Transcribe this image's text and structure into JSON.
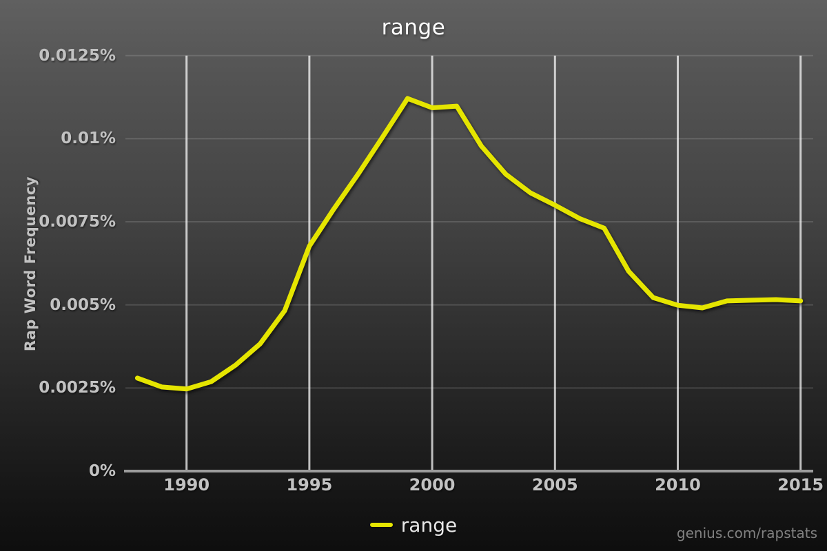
{
  "page": {
    "title": "range",
    "watermark": "genius.com/rapstats"
  },
  "colors": {
    "line": "#e5e500",
    "grid_vertical": "rgba(255,255,255,0.72)",
    "grid_horizontal": "rgba(255,255,255,0.14)",
    "axis": "#9c9c9c",
    "tick_label": "#c2c2c2",
    "title_text": "#ffffff",
    "background_top": "#606060",
    "background_bottom": "#0e0e0e"
  },
  "legend": {
    "label": "range"
  },
  "chart_data": {
    "type": "line",
    "title": "range",
    "xlabel": "",
    "ylabel": "Rap Word Frequency",
    "x": [
      1988,
      1989,
      1990,
      1991,
      1992,
      1993,
      1994,
      1995,
      1996,
      1997,
      1998,
      1999,
      2000,
      2001,
      2002,
      2003,
      2004,
      2005,
      2006,
      2007,
      2008,
      2009,
      2010,
      2011,
      2012,
      2013,
      2014,
      2015
    ],
    "series": [
      {
        "name": "range",
        "color": "#e5e500",
        "values": [
          0.0028,
          0.00253,
          0.00247,
          0.00269,
          0.00319,
          0.00383,
          0.00483,
          0.00677,
          0.00789,
          0.00895,
          0.01007,
          0.01121,
          0.01093,
          0.01098,
          0.00978,
          0.00893,
          0.00837,
          0.008,
          0.0076,
          0.00731,
          0.00601,
          0.00522,
          0.00499,
          0.00491,
          0.00512,
          0.00514,
          0.00516,
          0.00512
        ]
      }
    ],
    "xlim": [
      1988,
      2015
    ],
    "ylim": [
      0,
      0.0125
    ],
    "x_ticks": {
      "values": [
        1990,
        1995,
        2000,
        2005,
        2010,
        2015
      ],
      "labels": [
        "1990",
        "1995",
        "2000",
        "2005",
        "2010",
        "2015"
      ]
    },
    "y_ticks": {
      "values": [
        0,
        0.0025,
        0.005,
        0.0075,
        0.01,
        0.0125
      ],
      "labels": [
        "0%",
        "0.0025%",
        "0.005%",
        "0.0075%",
        "0.01%",
        "0.0125%"
      ]
    },
    "grid": "on",
    "legend_position": "bottom"
  }
}
